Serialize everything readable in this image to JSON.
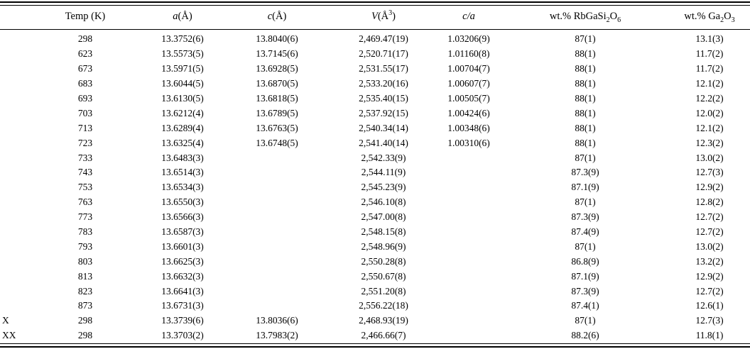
{
  "table": {
    "header": {
      "rowlabel": "",
      "temp": "Temp (K)",
      "a": {
        "i": "a",
        "r": "(Å)"
      },
      "c": {
        "i": "c",
        "r": "(Å)"
      },
      "v": {
        "i": "V",
        "r1": "(Å",
        "sup": "3",
        "r2": ")"
      },
      "ca": {
        "i": "c/a"
      },
      "wt_rb": {
        "r1": "wt.% RbGaSi",
        "sub1": "2",
        "r2": "O",
        "sub2": "6"
      },
      "wt_ga": {
        "r1": "wt.% Ga",
        "sub1": "2",
        "r2": "O",
        "sub2": "3"
      }
    },
    "rows": [
      [
        "",
        "298",
        "13.3752(6)",
        "13.8040(6)",
        "2,469.47(19)",
        "1.03206(9)",
        "87(1)",
        "13.1(3)"
      ],
      [
        "",
        "623",
        "13.5573(5)",
        "13.7145(6)",
        "2,520.71(17)",
        "1.01160(8)",
        "88(1)",
        "11.7(2)"
      ],
      [
        "",
        "673",
        "13.5971(5)",
        "13.6928(5)",
        "2,531.55(17)",
        "1.00704(7)",
        "88(1)",
        "11.7(2)"
      ],
      [
        "",
        "683",
        "13.6044(5)",
        "13.6870(5)",
        "2,533.20(16)",
        "1.00607(7)",
        "88(1)",
        "12.1(2)"
      ],
      [
        "",
        "693",
        "13.6130(5)",
        "13.6818(5)",
        "2,535.40(15)",
        "1.00505(7)",
        "88(1)",
        "12.2(2)"
      ],
      [
        "",
        "703",
        "13.6212(4)",
        "13.6789(5)",
        "2,537.92(15)",
        "1.00424(6)",
        "88(1)",
        "12.0(2)"
      ],
      [
        "",
        "713",
        "13.6289(4)",
        "13.6763(5)",
        "2,540.34(14)",
        "1.00348(6)",
        "88(1)",
        "12.1(2)"
      ],
      [
        "",
        "723",
        "13.6325(4)",
        "13.6748(5)",
        "2,541.40(14)",
        "1.00310(6)",
        "88(1)",
        "12.3(2)"
      ],
      [
        "",
        "733",
        "13.6483(3)",
        "",
        "2,542.33(9)",
        "",
        "87(1)",
        "13.0(2)"
      ],
      [
        "",
        "743",
        "13.6514(3)",
        "",
        "2,544.11(9)",
        "",
        "87.3(9)",
        "12.7(3)"
      ],
      [
        "",
        "753",
        "13.6534(3)",
        "",
        "2,545.23(9)",
        "",
        "87.1(9)",
        "12.9(2)"
      ],
      [
        "",
        "763",
        "13.6550(3)",
        "",
        "2,546.10(8)",
        "",
        "87(1)",
        "12.8(2)"
      ],
      [
        "",
        "773",
        "13.6566(3)",
        "",
        "2,547.00(8)",
        "",
        "87.3(9)",
        "12.7(2)"
      ],
      [
        "",
        "783",
        "13.6587(3)",
        "",
        "2,548.15(8)",
        "",
        "87.4(9)",
        "12.7(2)"
      ],
      [
        "",
        "793",
        "13.6601(3)",
        "",
        "2,548.96(9)",
        "",
        "87(1)",
        "13.0(2)"
      ],
      [
        "",
        "803",
        "13.6625(3)",
        "",
        "2,550.28(8)",
        "",
        "86.8(9)",
        "13.2(2)"
      ],
      [
        "",
        "813",
        "13.6632(3)",
        "",
        "2,550.67(8)",
        "",
        "87.1(9)",
        "12.9(2)"
      ],
      [
        "",
        "823",
        "13.6641(3)",
        "",
        "2,551.20(8)",
        "",
        "87.3(9)",
        "12.7(2)"
      ],
      [
        "",
        "873",
        "13.6731(3)",
        "",
        "2,556.22(18)",
        "",
        "87.4(1)",
        "12.6(1)"
      ],
      [
        "X",
        "298",
        "13.3739(6)",
        "13.8036(6)",
        "2,468.93(19)",
        "",
        "87(1)",
        "12.7(3)"
      ],
      [
        "XX",
        "298",
        "13.3703(2)",
        "13.7983(2)",
        "2,466.66(7)",
        "",
        "88.2(6)",
        "11.8(1)"
      ]
    ]
  }
}
